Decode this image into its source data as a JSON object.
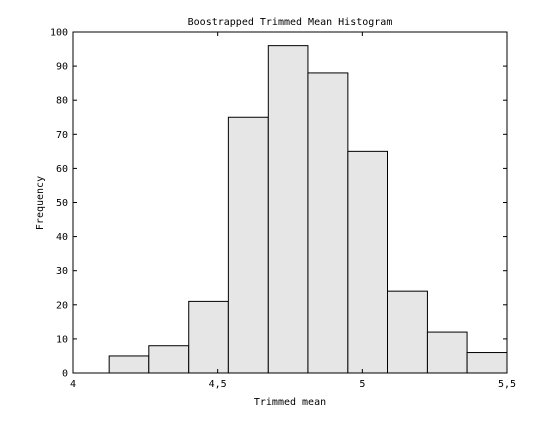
{
  "chart_data": {
    "type": "bar",
    "title": "Boostrapped Trimmed Mean Histogram",
    "xlabel": "Trimmed mean",
    "ylabel": "Frequency",
    "xlim": [
      4,
      5.5
    ],
    "ylim": [
      0,
      100
    ],
    "x_ticks": [
      4,
      4.5,
      5,
      5.5
    ],
    "x_tick_labels": [
      "4",
      "4,5",
      "5",
      "5,5"
    ],
    "y_ticks": [
      0,
      10,
      20,
      30,
      40,
      50,
      60,
      70,
      80,
      90,
      100
    ],
    "y_tick_labels": [
      "0",
      "10",
      "20",
      "30",
      "40",
      "50",
      "60",
      "70",
      "80",
      "90",
      "100"
    ],
    "bin_edges": [
      4.125,
      4.262,
      4.4,
      4.537,
      4.675,
      4.812,
      4.95,
      5.087,
      5.225,
      5.362,
      5.5
    ],
    "values": [
      5,
      8,
      21,
      75,
      96,
      88,
      65,
      24,
      12,
      6
    ],
    "grid": false,
    "bar_fill": "#e6e6e6",
    "bar_stroke": "#000000"
  }
}
